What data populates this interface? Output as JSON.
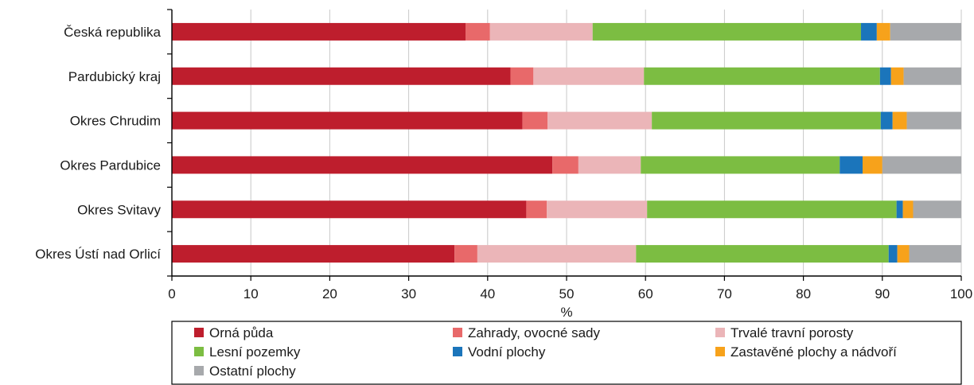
{
  "chart_data": {
    "type": "bar",
    "orientation": "horizontal",
    "stacked": true,
    "categories": [
      "Česká republika",
      "Pardubický kraj",
      "Okres Chrudim",
      "Okres Pardubice",
      "Okres Svitavy",
      "Okres Ústí nad Orlicí"
    ],
    "series": [
      {
        "name": "Orná půda",
        "color": "#be1e2d",
        "values": [
          37.2,
          42.9,
          44.4,
          48.2,
          44.9,
          35.8
        ]
      },
      {
        "name": "Zahrady, ovocné sady",
        "color": "#e8696a",
        "values": [
          3.1,
          2.9,
          3.2,
          3.3,
          2.6,
          2.9
        ]
      },
      {
        "name": "Trvalé travní porosty",
        "color": "#ebb5b8",
        "values": [
          13.0,
          14.0,
          13.2,
          7.9,
          12.7,
          20.1
        ]
      },
      {
        "name": "Lesní pozemky",
        "color": "#7cbd42",
        "values": [
          34.0,
          29.9,
          29.0,
          25.2,
          31.6,
          32.0
        ]
      },
      {
        "name": "Vodní plochy",
        "color": "#1b75bb",
        "values": [
          2.0,
          1.4,
          1.5,
          2.9,
          0.8,
          1.1
        ]
      },
      {
        "name": "Zastavěné plochy a nádvoří",
        "color": "#f7a21b",
        "values": [
          1.7,
          1.6,
          1.8,
          2.5,
          1.3,
          1.5
        ]
      },
      {
        "name": "Ostatní plochy",
        "color": "#a7a9ac",
        "values": [
          9.0,
          7.3,
          6.9,
          10.0,
          6.1,
          6.6
        ]
      }
    ],
    "xlabel": "%",
    "ylabel": "",
    "xlim": [
      0,
      100
    ],
    "xticks": [
      "0",
      "10",
      "20",
      "30",
      "40",
      "50",
      "60",
      "70",
      "80",
      "90",
      "100"
    ],
    "grid": true,
    "legend_position": "bottom"
  }
}
